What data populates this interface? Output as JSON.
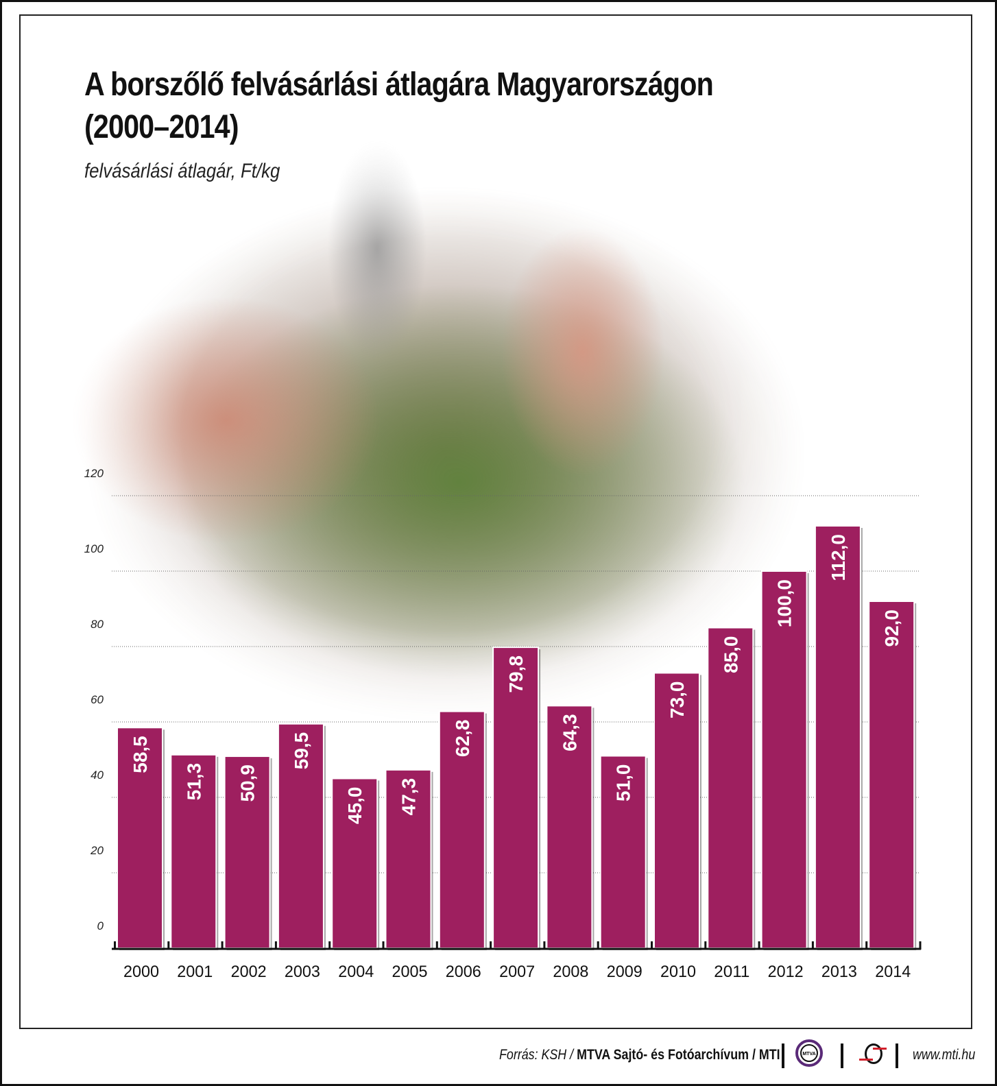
{
  "title_line1": "A borszőlő felvásárlási átlagára Magyarországon",
  "title_line2": "(2000–2014)",
  "chart_data": {
    "type": "bar",
    "title": "A borszőlő felvásárlási átlagára Magyarországon (2000–2014)",
    "ylabel": "felvásárlási átlagár, Ft/kg",
    "categories": [
      "2000",
      "2001",
      "2002",
      "2003",
      "2004",
      "2005",
      "2006",
      "2007",
      "2008",
      "2009",
      "2010",
      "2011",
      "2012",
      "2013",
      "2014"
    ],
    "values": [
      58.5,
      51.3,
      50.9,
      59.5,
      45.0,
      47.3,
      62.8,
      79.8,
      64.3,
      51.0,
      73.0,
      85.0,
      100.0,
      112.0,
      92.0
    ],
    "value_labels": [
      "58,5",
      "51,3",
      "50,9",
      "59,5",
      "45,0",
      "47,3",
      "62,8",
      "79,8",
      "64,3",
      "51,0",
      "73,0",
      "85,0",
      "100,0",
      "112,0",
      "92,0"
    ],
    "yticks": [
      0,
      20,
      40,
      60,
      80,
      100,
      120
    ],
    "ylim": [
      0,
      120
    ],
    "grid": true,
    "bar_color": "#9e1f5f"
  },
  "footer": {
    "source_prefix": "Forrás: KSH / ",
    "source_bold": "MTVA Sajtó- és Fotóarchívum / MTI",
    "mtva_logo_text": "MTVA",
    "url": "www.mti.hu"
  }
}
